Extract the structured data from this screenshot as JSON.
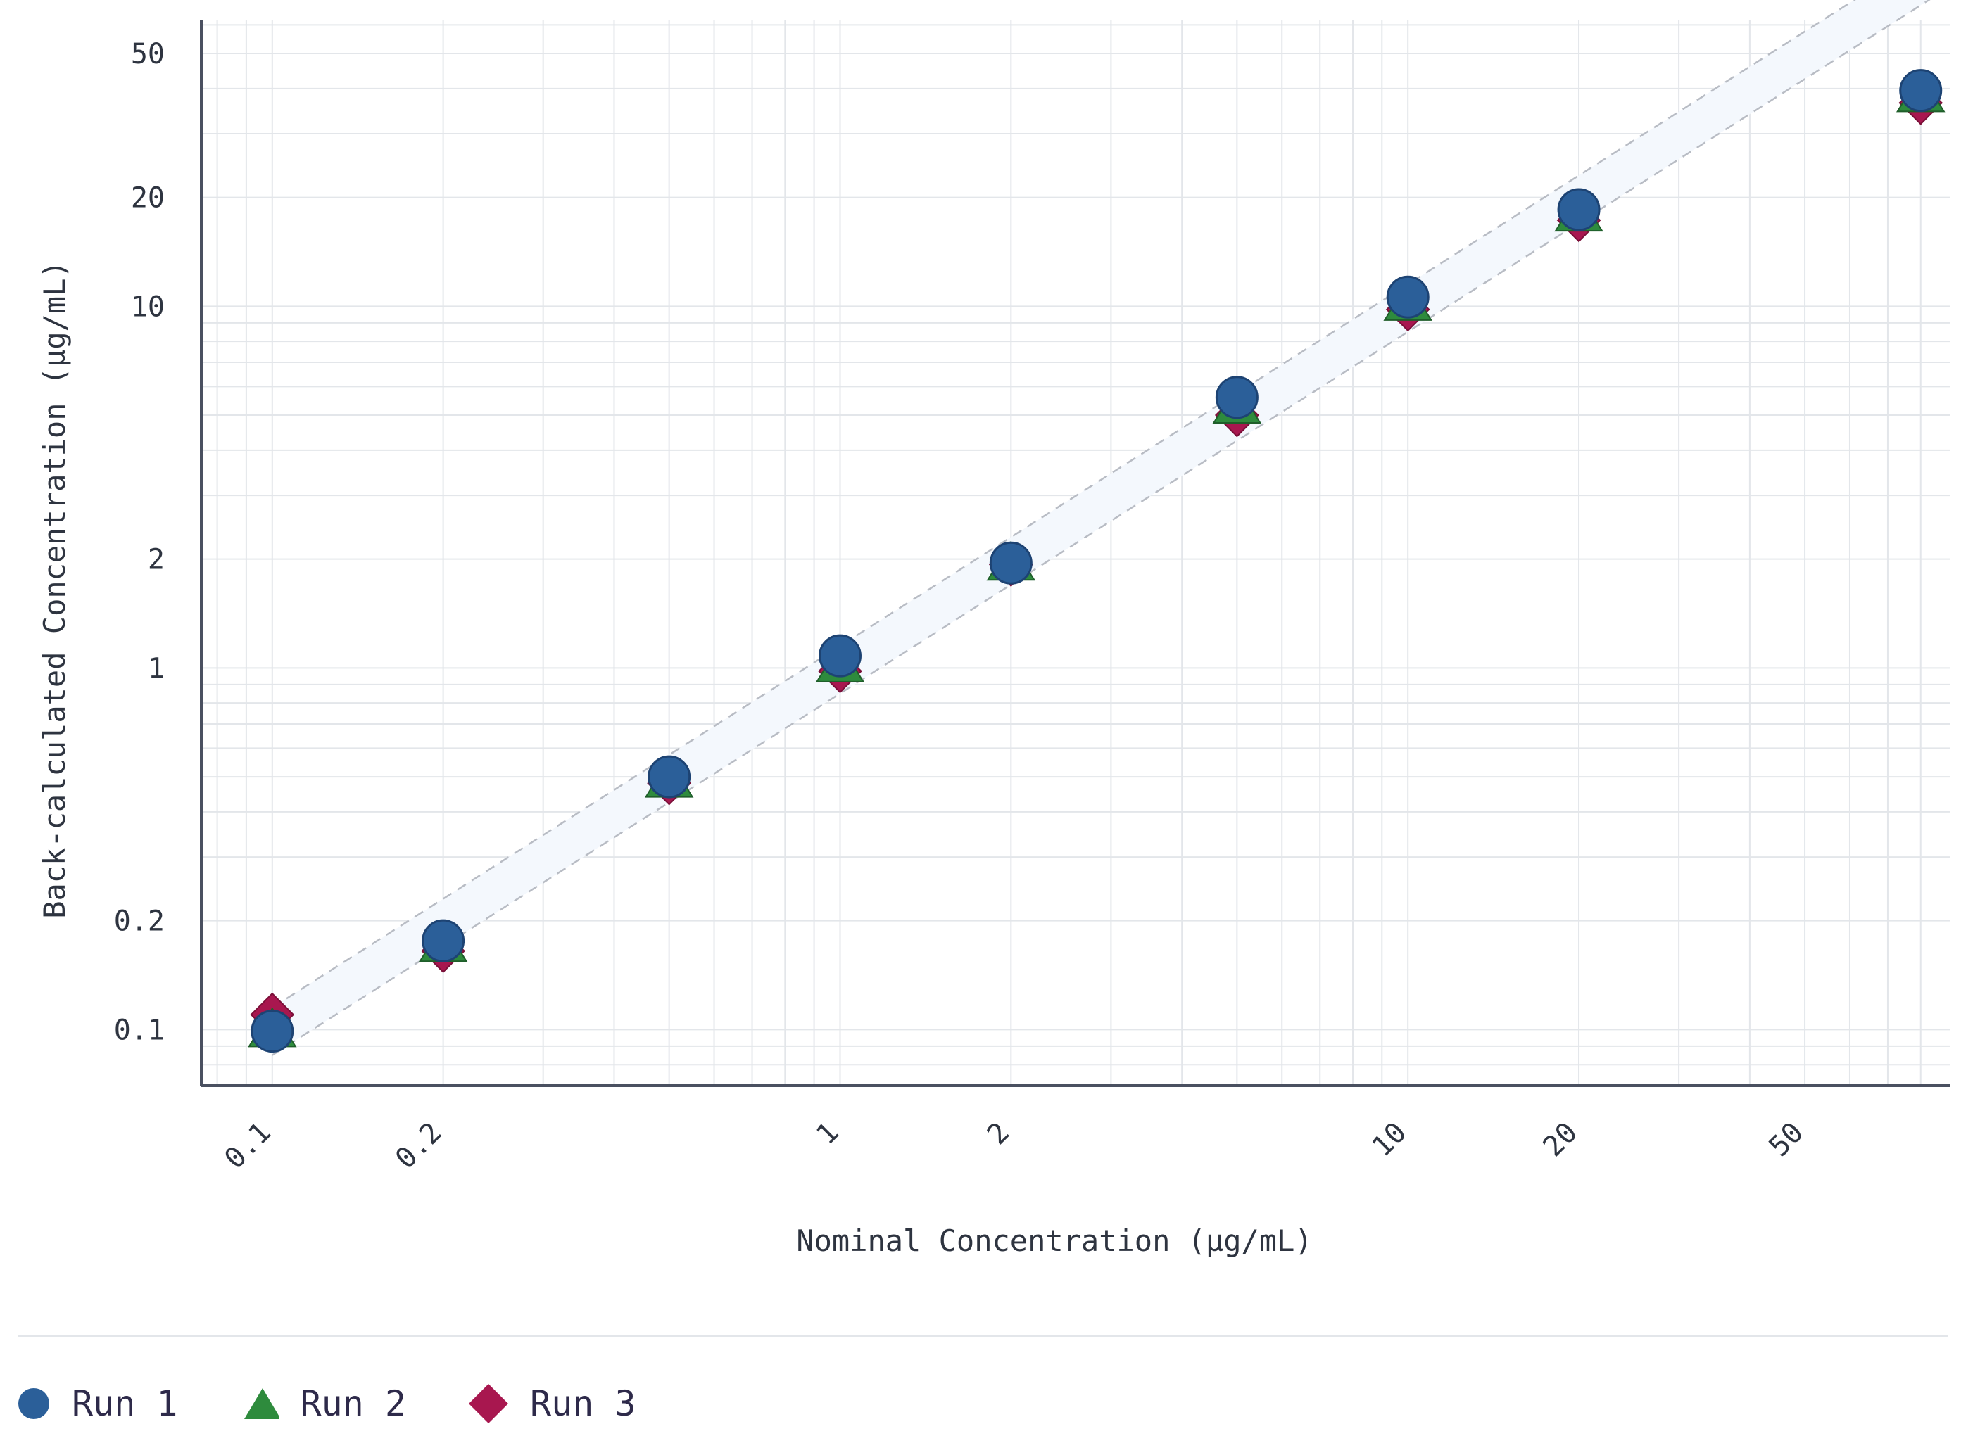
{
  "chart_data": {
    "type": "scatter",
    "xlabel": "Nominal Concentration (µg/mL)",
    "ylabel": "Back-calculated Concentration (µg/mL)",
    "x_scale": "log",
    "y_scale": "log",
    "xlim": [
      0.075,
      90
    ],
    "ylim": [
      0.07,
      62
    ],
    "x_ticks": [
      0.1,
      0.2,
      1,
      2,
      10,
      20,
      50
    ],
    "x_tick_labels": [
      "0.1",
      "0.2",
      "1",
      "2",
      "10",
      "20",
      "50"
    ],
    "y_ticks": [
      0.1,
      0.2,
      1,
      2,
      10,
      20,
      50
    ],
    "y_tick_labels": [
      "0.1",
      "0.2",
      "1",
      "2",
      "10",
      "20",
      "50"
    ],
    "grid": true,
    "acceptance_band": {
      "lower_factor": 0.85,
      "upper_factor": 1.15
    },
    "series": [
      {
        "name": "Run 1",
        "marker": "circle",
        "color": "#2b5f99",
        "x": [
          0.1,
          0.2,
          0.5,
          1,
          2,
          5,
          10,
          20,
          80
        ],
        "y": [
          0.099,
          0.176,
          0.5,
          1.08,
          1.95,
          5.6,
          10.6,
          18.5,
          39.5
        ]
      },
      {
        "name": "Run 2",
        "marker": "triangle",
        "color": "#2e8b3d",
        "x": [
          0.1,
          0.2,
          0.5,
          1,
          2,
          5,
          10,
          20,
          80
        ],
        "y": [
          0.1,
          0.172,
          0.49,
          1.02,
          1.95,
          5.3,
          10.2,
          18.0,
          38.5
        ]
      },
      {
        "name": "Run 3",
        "marker": "diamond",
        "color": "#a8174f",
        "x": [
          0.1,
          0.2,
          0.5,
          1,
          2,
          5,
          10,
          20,
          80
        ],
        "y": [
          0.11,
          0.165,
          0.48,
          0.98,
          1.93,
          5.0,
          9.8,
          17.3,
          36.5
        ]
      }
    ]
  },
  "legend": {
    "items": [
      {
        "label": "Run 1",
        "marker": "circle",
        "color": "#2b5f99"
      },
      {
        "label": "Run 2",
        "marker": "triangle",
        "color": "#2e8b3d"
      },
      {
        "label": "Run 3",
        "marker": "diamond",
        "color": "#a8174f"
      }
    ]
  },
  "colors": {
    "axis": "#4a5060",
    "grid": "#e3e6ea",
    "band_fill": "#f4f8fd",
    "band_line": "#b8bcc4"
  }
}
